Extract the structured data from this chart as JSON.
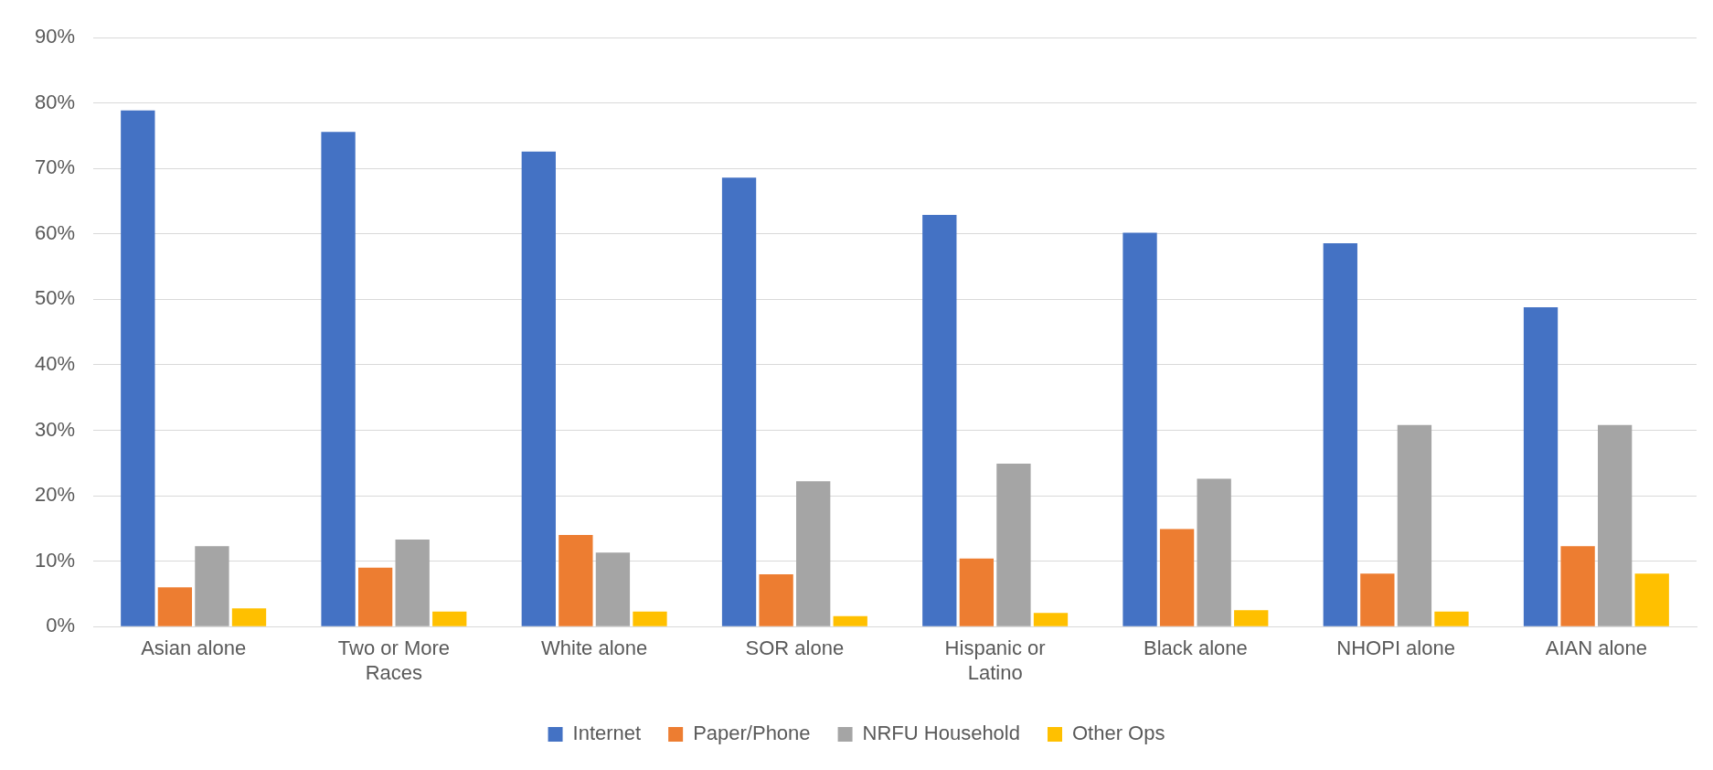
{
  "chart_data": {
    "type": "bar",
    "categories": [
      "Asian alone",
      "Two or More Races",
      "White alone",
      "SOR alone",
      "Hispanic or Latino",
      "Black alone",
      "NHOPI alone",
      "AIAN alone"
    ],
    "series": [
      {
        "name": "Internet",
        "color": "#4472c4",
        "values": [
          78.9,
          75.6,
          72.6,
          68.6,
          62.9,
          60.2,
          58.6,
          48.8
        ]
      },
      {
        "name": "Paper/Phone",
        "color": "#ed7d31",
        "values": [
          6,
          9,
          14,
          8,
          10.4,
          14.9,
          8.1,
          12.3
        ]
      },
      {
        "name": "NRFU Household",
        "color": "#a5a5a5",
        "values": [
          12.3,
          13.3,
          11.3,
          22.2,
          24.9,
          22.6,
          30.8,
          30.8
        ]
      },
      {
        "name": "Other Ops",
        "color": "#ffc000",
        "values": [
          2.8,
          2.3,
          2.3,
          1.6,
          2.1,
          2.5,
          2.3,
          8.1
        ]
      }
    ],
    "ylim": [
      0,
      90
    ],
    "yticks": [
      {
        "value": 0,
        "label": "0%"
      },
      {
        "value": 10,
        "label": "10%"
      },
      {
        "value": 20,
        "label": "20%"
      },
      {
        "value": 30,
        "label": "30%"
      },
      {
        "value": 40,
        "label": "40%"
      },
      {
        "value": 50,
        "label": "50%"
      },
      {
        "value": 60,
        "label": "60%"
      },
      {
        "value": 70,
        "label": "70%"
      },
      {
        "value": 80,
        "label": "80%"
      },
      {
        "value": 90,
        "label": "90%"
      }
    ],
    "grid": "y",
    "legend": "bottom"
  }
}
